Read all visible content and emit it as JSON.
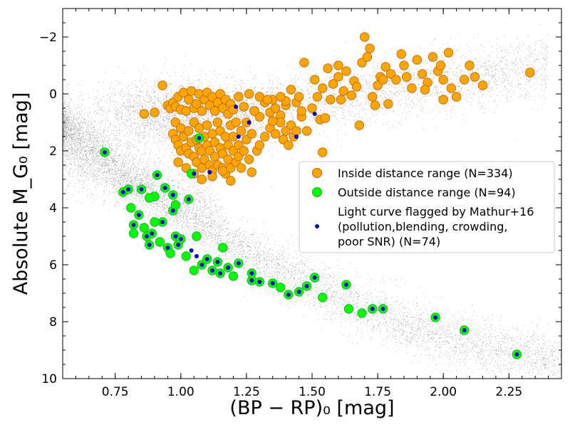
{
  "chart_data": {
    "type": "scatter",
    "xlabel": "(BP − RP)₀ [mag]",
    "ylabel": "Absolute M_G₀ [mag]",
    "xlim": [
      0.55,
      2.45
    ],
    "ylim": [
      10,
      -3
    ],
    "y_inverted": true,
    "x_ticks": [
      0.75,
      1.0,
      1.25,
      1.5,
      1.75,
      2.0,
      2.25
    ],
    "x_tick_labels": [
      "0.75",
      "1.00",
      "1.25",
      "1.50",
      "1.75",
      "2.00",
      "2.25"
    ],
    "y_ticks": [
      -2,
      0,
      2,
      4,
      6,
      8,
      10
    ],
    "y_tick_labels": [
      "−2",
      "0",
      "2",
      "4",
      "6",
      "8",
      "10"
    ],
    "grid": false,
    "legend_position": "center-right",
    "colors": {
      "background_field": "#8c8c8c",
      "inside": "#ffa500",
      "inside_edge": "#b8650a",
      "outside": "#00ff00",
      "outside_edge": "#2aa02a",
      "flagged": "#0000cc"
    },
    "series": [
      {
        "name": "Inside distance range (N=334)",
        "marker": "orange-circle",
        "points": [
          [
            0.86,
            0.7
          ],
          [
            0.9,
            0.65
          ],
          [
            0.93,
            -0.3
          ],
          [
            0.95,
            0.4
          ],
          [
            0.96,
            0.5
          ],
          [
            0.97,
            0.3
          ],
          [
            0.98,
            0.45
          ],
          [
            0.98,
            1.0
          ],
          [
            0.99,
            0.1
          ],
          [
            1.0,
            0.55
          ],
          [
            1.01,
            -0.05
          ],
          [
            1.02,
            0.6
          ],
          [
            1.03,
            0.2
          ],
          [
            1.04,
            -0.1
          ],
          [
            1.05,
            0.5
          ],
          [
            1.06,
            0.35
          ],
          [
            1.07,
            0.0
          ],
          [
            1.08,
            0.6
          ],
          [
            1.09,
            0.2
          ],
          [
            1.1,
            -0.05
          ],
          [
            1.11,
            0.4
          ],
          [
            1.12,
            0.1
          ],
          [
            1.13,
            0.6
          ],
          [
            1.14,
            0.3
          ],
          [
            1.15,
            0.0
          ],
          [
            1.16,
            0.5
          ],
          [
            1.17,
            0.2
          ],
          [
            1.18,
            0.7
          ],
          [
            1.19,
            0.35
          ],
          [
            1.2,
            0.55
          ],
          [
            1.22,
            0.1
          ],
          [
            1.24,
            0.45
          ],
          [
            1.26,
            0.0
          ],
          [
            1.28,
            0.6
          ],
          [
            1.3,
            0.8
          ],
          [
            1.32,
            0.3
          ],
          [
            1.34,
            0.65
          ],
          [
            1.36,
            0.5
          ],
          [
            1.38,
            0.75
          ],
          [
            1.4,
            0.4
          ],
          [
            0.97,
            1.4
          ],
          [
            0.98,
            1.6
          ],
          [
            0.99,
            1.8
          ],
          [
            1.0,
            1.2
          ],
          [
            1.0,
            2.0
          ],
          [
            1.01,
            1.5
          ],
          [
            1.02,
            1.9
          ],
          [
            1.03,
            2.1
          ],
          [
            1.03,
            1.3
          ],
          [
            1.04,
            1.7
          ],
          [
            1.05,
            2.2
          ],
          [
            1.05,
            1.0
          ],
          [
            1.06,
            1.6
          ],
          [
            1.06,
            2.4
          ],
          [
            1.07,
            1.9
          ],
          [
            1.07,
            1.2
          ],
          [
            1.08,
            2.0
          ],
          [
            1.08,
            2.6
          ],
          [
            1.09,
            1.5
          ],
          [
            1.09,
            2.3
          ],
          [
            1.1,
            1.8
          ],
          [
            1.1,
            1.1
          ],
          [
            1.11,
            2.5
          ],
          [
            1.11,
            2.0
          ],
          [
            1.12,
            1.4
          ],
          [
            1.12,
            2.7
          ],
          [
            1.13,
            1.7
          ],
          [
            1.13,
            2.2
          ],
          [
            1.14,
            1.0
          ],
          [
            1.14,
            2.5
          ],
          [
            1.15,
            1.9
          ],
          [
            1.15,
            1.3
          ],
          [
            1.16,
            2.6
          ],
          [
            1.16,
            2.1
          ],
          [
            1.17,
            1.5
          ],
          [
            1.17,
            2.8
          ],
          [
            1.18,
            1.8
          ],
          [
            1.18,
            2.3
          ],
          [
            1.19,
            1.1
          ],
          [
            1.19,
            2.6
          ],
          [
            1.2,
            2.0
          ],
          [
            1.2,
            1.5
          ],
          [
            1.21,
            2.4
          ],
          [
            1.21,
            1.0
          ],
          [
            1.22,
            1.8
          ],
          [
            1.22,
            2.2
          ],
          [
            1.23,
            1.3
          ],
          [
            1.24,
            2.0
          ],
          [
            1.25,
            1.6
          ],
          [
            1.26,
            2.3
          ],
          [
            0.99,
            2.4
          ],
          [
            1.02,
            2.6
          ],
          [
            1.05,
            2.8
          ],
          [
            1.08,
            3.0
          ],
          [
            1.12,
            2.9
          ],
          [
            1.16,
            2.7
          ],
          [
            1.19,
            3.05
          ],
          [
            1.23,
            2.6
          ],
          [
            1.27,
            2.75
          ],
          [
            1.29,
            2.0
          ],
          [
            1.3,
            1.8
          ],
          [
            1.32,
            1.5
          ],
          [
            1.34,
            1.2
          ],
          [
            1.36,
            1.4
          ],
          [
            1.38,
            1.0
          ],
          [
            1.39,
            1.6
          ],
          [
            1.4,
            1.3
          ],
          [
            1.41,
            1.8
          ],
          [
            1.42,
            1.1
          ],
          [
            1.43,
            1.5
          ],
          [
            1.3,
            0.1
          ],
          [
            1.35,
            0.2
          ],
          [
            1.4,
            0.25
          ],
          [
            1.42,
            -0.15
          ],
          [
            1.44,
            0.3
          ],
          [
            1.46,
            0.8
          ],
          [
            1.48,
            1.3
          ],
          [
            1.5,
            0.5
          ],
          [
            1.51,
            -0.5
          ],
          [
            1.52,
            0.1
          ],
          [
            1.53,
            0.9
          ],
          [
            1.54,
            -0.2
          ],
          [
            1.55,
            0.85
          ],
          [
            1.56,
            -0.9
          ],
          [
            1.57,
            0.2
          ],
          [
            1.58,
            -0.35
          ],
          [
            1.6,
            -0.6
          ],
          [
            1.61,
            0.2
          ],
          [
            1.62,
            -0.1
          ],
          [
            1.63,
            -0.8
          ],
          [
            1.65,
            0.05
          ],
          [
            1.66,
            -0.45
          ],
          [
            1.67,
            -0.25
          ],
          [
            1.68,
            1.1
          ],
          [
            1.69,
            -1.1
          ],
          [
            1.7,
            -2.0
          ],
          [
            1.71,
            -1.3
          ],
          [
            1.72,
            -1.6
          ],
          [
            1.73,
            0.1
          ],
          [
            1.74,
            0.4
          ],
          [
            1.75,
            -0.3
          ],
          [
            1.76,
            -0.6
          ],
          [
            1.77,
            -0.5
          ],
          [
            1.78,
            -0.95
          ],
          [
            1.79,
            0.35
          ],
          [
            1.8,
            -0.7
          ],
          [
            1.82,
            -0.5
          ],
          [
            1.84,
            -1.4
          ],
          [
            1.86,
            -0.6
          ],
          [
            1.88,
            -0.2
          ],
          [
            1.9,
            -1.2
          ],
          [
            1.92,
            -0.7
          ],
          [
            1.94,
            -0.4
          ],
          [
            1.96,
            -1.3
          ],
          [
            1.98,
            -0.8
          ],
          [
            2.0,
            -0.5
          ],
          [
            2.02,
            -1.45
          ],
          [
            2.03,
            -0.2
          ],
          [
            2.05,
            0.1
          ],
          [
            2.08,
            -0.5
          ],
          [
            2.1,
            -1.0
          ],
          [
            2.12,
            -0.6
          ],
          [
            2.15,
            -0.3
          ],
          [
            2.33,
            -0.75
          ],
          [
            2.0,
            0.2
          ],
          [
            1.99,
            -1.0
          ],
          [
            1.93,
            -0.15
          ],
          [
            1.85,
            -1.0
          ],
          [
            1.6,
            -1.0
          ],
          [
            1.54,
            2.05
          ],
          [
            1.47,
            -1.1
          ],
          [
            1.45,
            0.1
          ],
          [
            1.38,
            0.1
          ],
          [
            1.33,
            0.2
          ],
          [
            1.28,
            0.6
          ],
          [
            1.35,
            0.95
          ],
          [
            1.44,
            1.3
          ],
          [
            1.46,
            0.6
          ],
          [
            1.25,
            1.0
          ],
          [
            1.27,
            1.4
          ]
        ]
      },
      {
        "name": "Outside distance range (N=94)",
        "marker": "green-circle",
        "points": [
          [
            0.71,
            2.05
          ],
          [
            0.78,
            3.45
          ],
          [
            0.8,
            3.35
          ],
          [
            0.81,
            4.0
          ],
          [
            0.82,
            4.6
          ],
          [
            0.82,
            4.9
          ],
          [
            0.84,
            4.25
          ],
          [
            0.85,
            3.35
          ],
          [
            0.86,
            4.7
          ],
          [
            0.87,
            5.0
          ],
          [
            0.88,
            5.3
          ],
          [
            0.89,
            4.9
          ],
          [
            0.9,
            3.6
          ],
          [
            0.91,
            2.85
          ],
          [
            0.92,
            5.2
          ],
          [
            0.93,
            4.5
          ],
          [
            0.94,
            3.3
          ],
          [
            0.95,
            5.4
          ],
          [
            0.96,
            5.6
          ],
          [
            0.97,
            4.1
          ],
          [
            0.98,
            5.0
          ],
          [
            0.99,
            5.3
          ],
          [
            1.0,
            5.1
          ],
          [
            1.02,
            5.7
          ],
          [
            1.03,
            3.7
          ],
          [
            1.05,
            6.2
          ],
          [
            1.06,
            5.0
          ],
          [
            1.07,
            1.55
          ],
          [
            1.08,
            6.0
          ],
          [
            1.1,
            5.8
          ],
          [
            1.12,
            6.2
          ],
          [
            1.14,
            5.9
          ],
          [
            1.15,
            6.3
          ],
          [
            1.16,
            5.4
          ],
          [
            1.18,
            6.1
          ],
          [
            1.2,
            6.4
          ],
          [
            1.22,
            5.95
          ],
          [
            1.27,
            6.55
          ],
          [
            1.3,
            6.6
          ],
          [
            1.35,
            6.65
          ],
          [
            1.38,
            6.8
          ],
          [
            1.41,
            7.05
          ],
          [
            1.45,
            6.95
          ],
          [
            1.48,
            6.75
          ],
          [
            1.51,
            6.45
          ],
          [
            1.54,
            7.15
          ],
          [
            1.63,
            6.7
          ],
          [
            1.64,
            7.55
          ],
          [
            1.69,
            7.7
          ],
          [
            1.73,
            7.55
          ],
          [
            1.77,
            7.55
          ],
          [
            1.97,
            7.85
          ],
          [
            2.08,
            8.3
          ],
          [
            2.28,
            9.15
          ],
          [
            0.97,
            3.55
          ],
          [
            0.98,
            3.9
          ],
          [
            1.04,
            2.8
          ],
          [
            0.88,
            3.65
          ],
          [
            0.9,
            4.5
          ],
          [
            1.27,
            6.3
          ]
        ]
      },
      {
        "name": "Light curve flagged by Mathur+16 (pollution,blending, crowding, poor SNR) (N=74)",
        "marker": "blue-dot",
        "points": [
          [
            0.71,
            2.05
          ],
          [
            0.78,
            3.45
          ],
          [
            0.8,
            3.35
          ],
          [
            0.84,
            4.25
          ],
          [
            0.85,
            3.35
          ],
          [
            0.87,
            5.0
          ],
          [
            0.88,
            5.3
          ],
          [
            0.89,
            4.9
          ],
          [
            0.91,
            2.85
          ],
          [
            0.93,
            4.5
          ],
          [
            0.94,
            3.3
          ],
          [
            0.95,
            5.4
          ],
          [
            0.97,
            4.1
          ],
          [
            0.98,
            5.0
          ],
          [
            0.99,
            5.3
          ],
          [
            1.0,
            5.1
          ],
          [
            1.03,
            3.7
          ],
          [
            1.05,
            2.8
          ],
          [
            1.07,
            1.55
          ],
          [
            1.08,
            6.0
          ],
          [
            1.1,
            5.8
          ],
          [
            1.12,
            6.2
          ],
          [
            1.14,
            5.9
          ],
          [
            1.15,
            6.3
          ],
          [
            1.18,
            6.1
          ],
          [
            1.22,
            5.95
          ],
          [
            1.27,
            6.55
          ],
          [
            1.3,
            6.6
          ],
          [
            1.35,
            6.65
          ],
          [
            1.41,
            7.05
          ],
          [
            1.45,
            6.95
          ],
          [
            1.48,
            6.75
          ],
          [
            1.51,
            6.45
          ],
          [
            1.63,
            6.7
          ],
          [
            1.73,
            7.55
          ],
          [
            1.77,
            7.55
          ],
          [
            1.97,
            7.85
          ],
          [
            2.08,
            8.3
          ],
          [
            2.28,
            9.15
          ],
          [
            1.21,
            0.45
          ],
          [
            1.26,
            1.0
          ],
          [
            1.22,
            1.5
          ],
          [
            1.44,
            1.5
          ],
          [
            1.51,
            0.7
          ],
          [
            0.97,
            3.55
          ],
          [
            0.82,
            4.6
          ],
          [
            1.27,
            6.3
          ],
          [
            1.11,
            2.75
          ],
          [
            1.04,
            5.5
          ],
          [
            1.06,
            5.7
          ]
        ]
      }
    ]
  }
}
